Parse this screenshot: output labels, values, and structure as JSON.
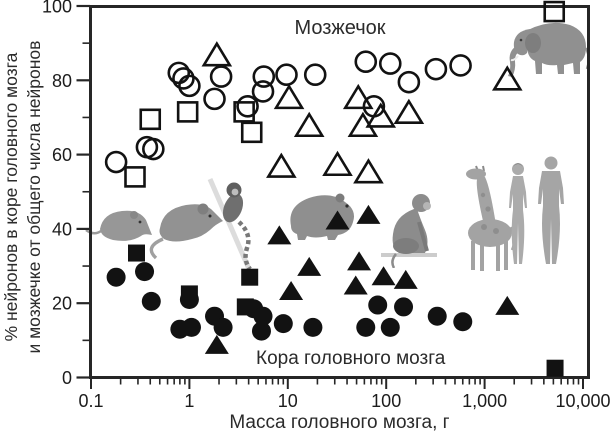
{
  "figure": {
    "animal_icons": [
      "shrew",
      "rat",
      "marmoset",
      "agouti",
      "macaque",
      "giraffe",
      "woman",
      "man",
      "elephant"
    ]
  },
  "chart_data": {
    "type": "scatter",
    "title": "",
    "xlabel": "Масса головного мозга, г",
    "ylabel_line1": "% нейронов в коре головного мозга",
    "ylabel_line2": "и мозжечке от общего числа нейронов",
    "annotations": {
      "cerebellum": "Мозжечок",
      "cortex": "Кора головного мозга"
    },
    "x_axis": {
      "scale": "log",
      "range": [
        0.1,
        10000
      ],
      "tick_values": [
        0.1,
        1,
        10,
        100,
        1000,
        10000
      ],
      "tick_labels": [
        "0.1",
        "1",
        "10",
        "100",
        "1,000",
        "10,000"
      ]
    },
    "y_axis": {
      "scale": "linear",
      "range": [
        0,
        100
      ],
      "tick_values": [
        0,
        20,
        40,
        60,
        80,
        100
      ],
      "tick_labels": [
        "0",
        "20",
        "40",
        "60",
        "80",
        "100"
      ],
      "minor_tick_values": [
        10,
        30,
        50,
        70,
        90
      ]
    },
    "marker_color": "#121212",
    "frame_color": "#262626",
    "grid": false,
    "legend": "none",
    "series": [
      {
        "name": "cerebellum-circles",
        "group": "Мозжечок",
        "marker": "circle",
        "fill": "open",
        "points": [
          [
            0.18,
            58
          ],
          [
            0.37,
            62
          ],
          [
            0.43,
            61.5
          ],
          [
            0.78,
            82
          ],
          [
            0.87,
            80.5
          ],
          [
            1.0,
            78.5
          ],
          [
            1.8,
            75
          ],
          [
            2.1,
            81
          ],
          [
            3.9,
            73
          ],
          [
            5.6,
            77
          ],
          [
            5.7,
            81
          ],
          [
            9.7,
            81.5
          ],
          [
            19,
            81.5
          ],
          [
            62,
            85
          ],
          [
            75,
            73
          ],
          [
            110,
            84.5
          ],
          [
            170,
            79.5
          ],
          [
            320,
            83
          ],
          [
            570,
            84
          ]
        ]
      },
      {
        "name": "cerebellum-squares",
        "group": "Мозжечок",
        "marker": "square",
        "fill": "open",
        "points": [
          [
            0.28,
            54
          ],
          [
            0.4,
            69.5
          ],
          [
            0.96,
            71.5
          ],
          [
            3.6,
            71.5
          ],
          [
            4.3,
            66
          ],
          [
            5100,
            98.5
          ]
        ]
      },
      {
        "name": "cerebellum-triangles",
        "group": "Мозжечок",
        "marker": "triangle",
        "fill": "open",
        "points": [
          [
            1.9,
            86.5
          ],
          [
            8.6,
            56.5
          ],
          [
            10.3,
            75
          ],
          [
            16.5,
            67.5
          ],
          [
            32,
            57
          ],
          [
            52,
            75
          ],
          [
            58,
            67.5
          ],
          [
            66,
            55
          ],
          [
            88,
            70
          ],
          [
            170,
            71
          ],
          [
            1700,
            80
          ]
        ]
      },
      {
        "name": "cortex-circles",
        "group": "Кора головного мозга",
        "marker": "circle",
        "fill": "filled",
        "points": [
          [
            0.18,
            27
          ],
          [
            0.35,
            28.5
          ],
          [
            0.41,
            20.5
          ],
          [
            0.8,
            13
          ],
          [
            1.0,
            21
          ],
          [
            1.05,
            13.5
          ],
          [
            1.8,
            16.5
          ],
          [
            2.2,
            13.5
          ],
          [
            4.5,
            18.5
          ],
          [
            5.4,
            12.5
          ],
          [
            5.6,
            16.5
          ],
          [
            9.0,
            14.5
          ],
          [
            18,
            13.5
          ],
          [
            62,
            13.5
          ],
          [
            82,
            19.5
          ],
          [
            110,
            13.5
          ],
          [
            150,
            19
          ],
          [
            330,
            16.5
          ],
          [
            600,
            15
          ]
        ]
      },
      {
        "name": "cortex-squares",
        "group": "Кора головного мозга",
        "marker": "square",
        "fill": "filled",
        "points": [
          [
            0.29,
            33.5
          ],
          [
            1.0,
            22.5
          ],
          [
            3.7,
            19
          ],
          [
            4.1,
            27
          ],
          [
            5200,
            2.5
          ]
        ]
      },
      {
        "name": "cortex-triangles",
        "group": "Кора головного мозга",
        "marker": "triangle",
        "fill": "filled",
        "points": [
          [
            1.9,
            8.5
          ],
          [
            8.2,
            38
          ],
          [
            10.8,
            23
          ],
          [
            16.5,
            29.5
          ],
          [
            32,
            42
          ],
          [
            49,
            24.5
          ],
          [
            53,
            31
          ],
          [
            66,
            43.5
          ],
          [
            94,
            27
          ],
          [
            158,
            26
          ],
          [
            1700,
            19
          ]
        ]
      }
    ]
  }
}
